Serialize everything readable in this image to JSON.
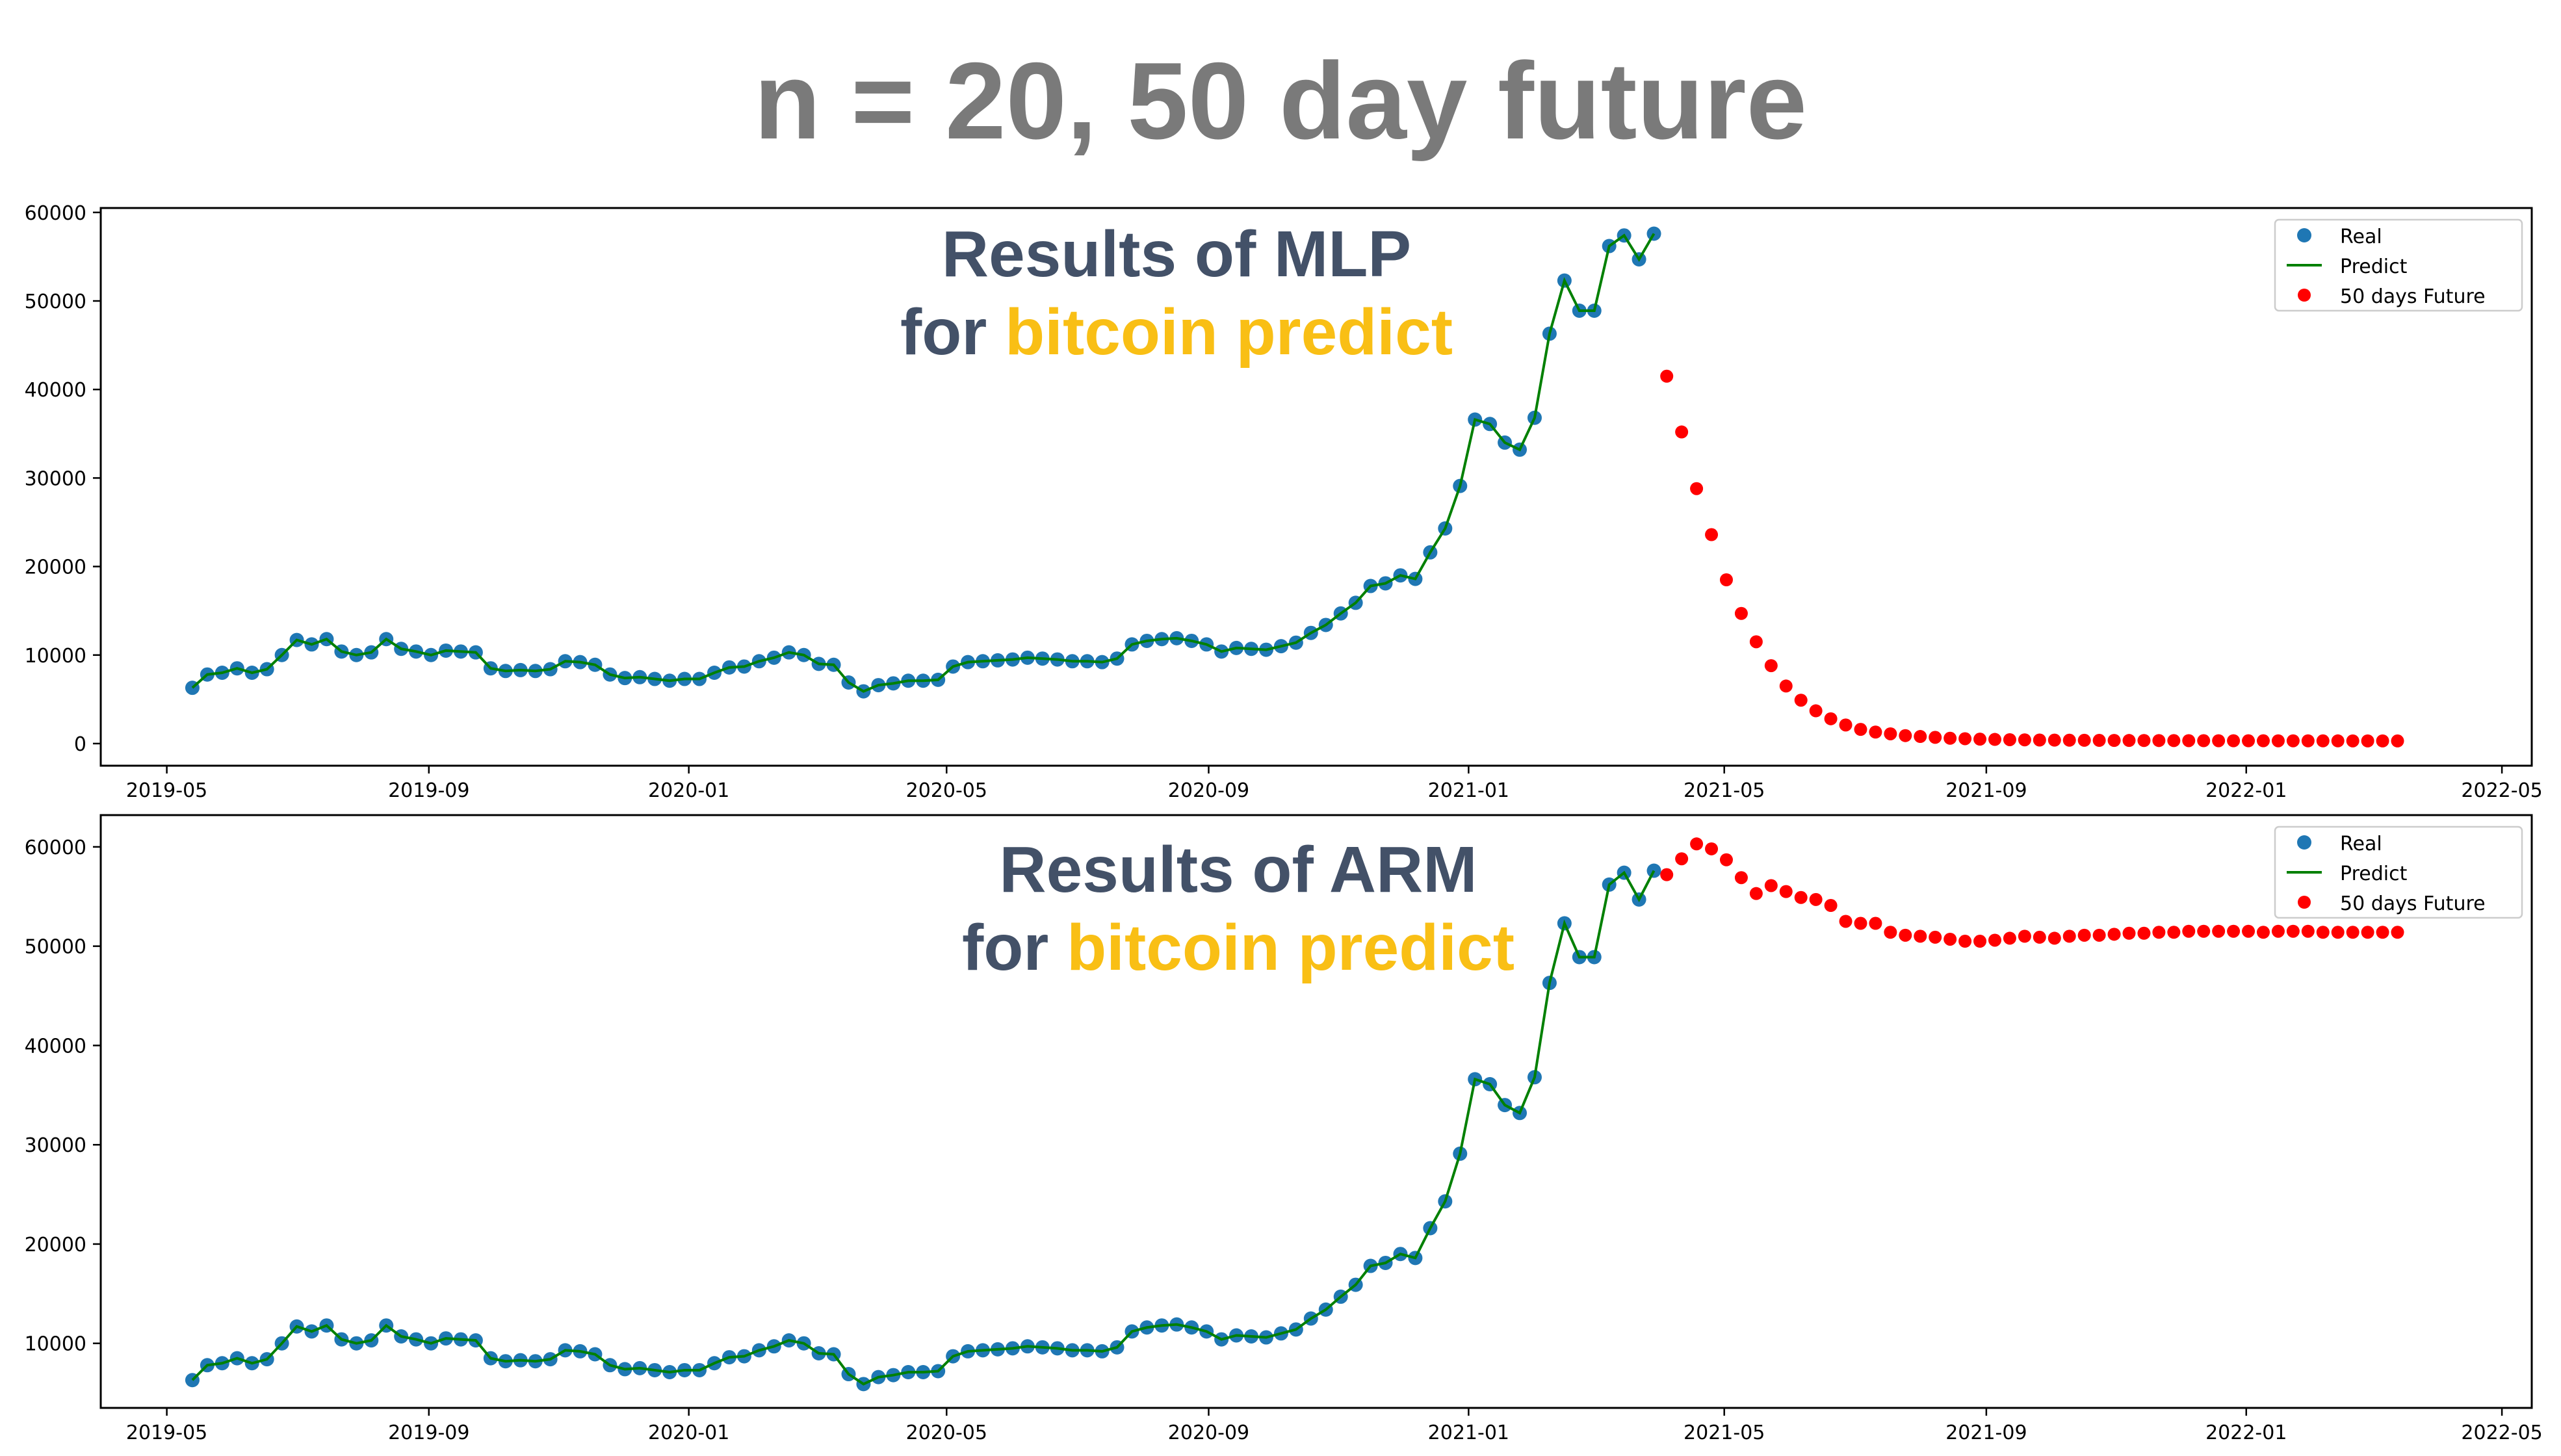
{
  "page_title": "n = 20, 50 day future",
  "colors": {
    "real": "#1f77b4",
    "predict": "#008000",
    "future": "#ff0000",
    "overlay_main": "#435168",
    "overlay_accent": "#f9bf15",
    "title": "#7a7a7a"
  },
  "chart_data": [
    {
      "type": "scatter",
      "id": "mlp",
      "overlay_line1": "Results of MLP",
      "overlay_line2_prefix": "for ",
      "overlay_line2_accent": "bitcoin predict",
      "xlim": [
        "2019-03-31",
        "2022-05-15"
      ],
      "ylim": [
        -2500,
        60500
      ],
      "x_ticks": [
        "2019-05-01",
        "2019-09-01",
        "2020-01-01",
        "2020-05-01",
        "2020-09-01",
        "2021-01-01",
        "2021-05-01",
        "2021-09-01",
        "2022-01-01",
        "2022-05-01"
      ],
      "x_tick_labels": [
        "2019-05",
        "2019-09",
        "2020-01",
        "2020-05",
        "2020-09",
        "2021-01",
        "2021-05",
        "2021-09",
        "2022-01",
        "2022-05"
      ],
      "y_ticks": [
        0,
        10000,
        20000,
        30000,
        40000,
        50000,
        60000
      ],
      "y_tick_labels": [
        "0",
        "10000",
        "20000",
        "30000",
        "40000",
        "50000",
        "60000"
      ],
      "legend_position": "top-right",
      "legend": [
        "Real",
        "Predict",
        "50 days Future"
      ],
      "real": {
        "start": "2019-05-13",
        "step_days": 7,
        "values": [
          6300,
          7800,
          8000,
          8500,
          8000,
          8400,
          10000,
          11700,
          11200,
          11800,
          10400,
          10000,
          10300,
          11800,
          10700,
          10400,
          10000,
          10500,
          10400,
          10300,
          8500,
          8200,
          8300,
          8200,
          8400,
          9300,
          9200,
          8900,
          7800,
          7400,
          7500,
          7300,
          7100,
          7300,
          7300,
          8000,
          8600,
          8700,
          9300,
          9700,
          10300,
          10000,
          9000,
          8900,
          6900,
          5900,
          6600,
          6800,
          7100,
          7100,
          7200,
          8700,
          9200,
          9300,
          9400,
          9500,
          9700,
          9600,
          9500,
          9300,
          9300,
          9200,
          9600,
          11200,
          11600,
          11800,
          11900,
          11600,
          11200,
          10400,
          10800,
          10700,
          10600,
          11000,
          11400,
          12500,
          13400,
          14700,
          15900,
          17800,
          18100,
          19000,
          18600,
          21600,
          24300,
          29100,
          36600,
          36100,
          34000,
          33200,
          36800,
          46300,
          52300,
          48900,
          48900,
          56200,
          57400,
          54700,
          57600
        ]
      },
      "future": {
        "start": "2021-04-04",
        "step_days": 7,
        "values": [
          41500,
          35200,
          28800,
          23600,
          18500,
          14700,
          11500,
          8800,
          6500,
          4900,
          3700,
          2800,
          2100,
          1600,
          1300,
          1100,
          900,
          800,
          700,
          600,
          550,
          500,
          470,
          440,
          420,
          400,
          390,
          380,
          370,
          360,
          355,
          350,
          345,
          340,
          335,
          330,
          325,
          320,
          318,
          316,
          314,
          312,
          310,
          308,
          306,
          304,
          302,
          300,
          299,
          298
        ]
      }
    },
    {
      "type": "scatter",
      "id": "arm",
      "overlay_line1": "Results of ARM",
      "overlay_line2_prefix": "for ",
      "overlay_line2_accent": "bitcoin predict",
      "xlim": [
        "2019-03-31",
        "2022-05-15"
      ],
      "ylim": [
        3500,
        63200
      ],
      "x_ticks": [
        "2019-05-01",
        "2019-09-01",
        "2020-01-01",
        "2020-05-01",
        "2020-09-01",
        "2021-01-01",
        "2021-05-01",
        "2021-09-01",
        "2022-01-01",
        "2022-05-01"
      ],
      "x_tick_labels": [
        "2019-05",
        "2019-09",
        "2020-01",
        "2020-05",
        "2020-09",
        "2021-01",
        "2021-05",
        "2021-09",
        "2022-01",
        "2022-05"
      ],
      "y_ticks": [
        10000,
        20000,
        30000,
        40000,
        50000,
        60000
      ],
      "y_tick_labels": [
        "10000",
        "20000",
        "30000",
        "40000",
        "50000",
        "60000"
      ],
      "legend_position": "top-right",
      "legend": [
        "Real",
        "Predict",
        "50 days Future"
      ],
      "real": {
        "start": "2019-05-13",
        "step_days": 7,
        "values": [
          6300,
          7800,
          8000,
          8500,
          8000,
          8400,
          10000,
          11700,
          11200,
          11800,
          10400,
          10000,
          10300,
          11800,
          10700,
          10400,
          10000,
          10500,
          10400,
          10300,
          8500,
          8200,
          8300,
          8200,
          8400,
          9300,
          9200,
          8900,
          7800,
          7400,
          7500,
          7300,
          7100,
          7300,
          7300,
          8000,
          8600,
          8700,
          9300,
          9700,
          10300,
          10000,
          9000,
          8900,
          6900,
          5900,
          6600,
          6800,
          7100,
          7100,
          7200,
          8700,
          9200,
          9300,
          9400,
          9500,
          9700,
          9600,
          9500,
          9300,
          9300,
          9200,
          9600,
          11200,
          11600,
          11800,
          11900,
          11600,
          11200,
          10400,
          10800,
          10700,
          10600,
          11000,
          11400,
          12500,
          13400,
          14700,
          15900,
          17800,
          18100,
          19000,
          18600,
          21600,
          24300,
          29100,
          36600,
          36100,
          34000,
          33200,
          36800,
          46300,
          52300,
          48900,
          48900,
          56200,
          57400,
          54700,
          57600
        ]
      },
      "future": {
        "start": "2021-04-04",
        "step_days": 7,
        "values": [
          57200,
          58800,
          60300,
          59800,
          58700,
          56900,
          55300,
          56100,
          55500,
          54900,
          54700,
          54100,
          52500,
          52300,
          52300,
          51400,
          51100,
          51000,
          50900,
          50700,
          50500,
          50500,
          50600,
          50800,
          51000,
          50900,
          50800,
          51000,
          51100,
          51100,
          51200,
          51300,
          51300,
          51400,
          51400,
          51500,
          51500,
          51500,
          51500,
          51500,
          51400,
          51500,
          51500,
          51500,
          51400,
          51400,
          51400,
          51400,
          51400,
          51400
        ]
      }
    }
  ]
}
